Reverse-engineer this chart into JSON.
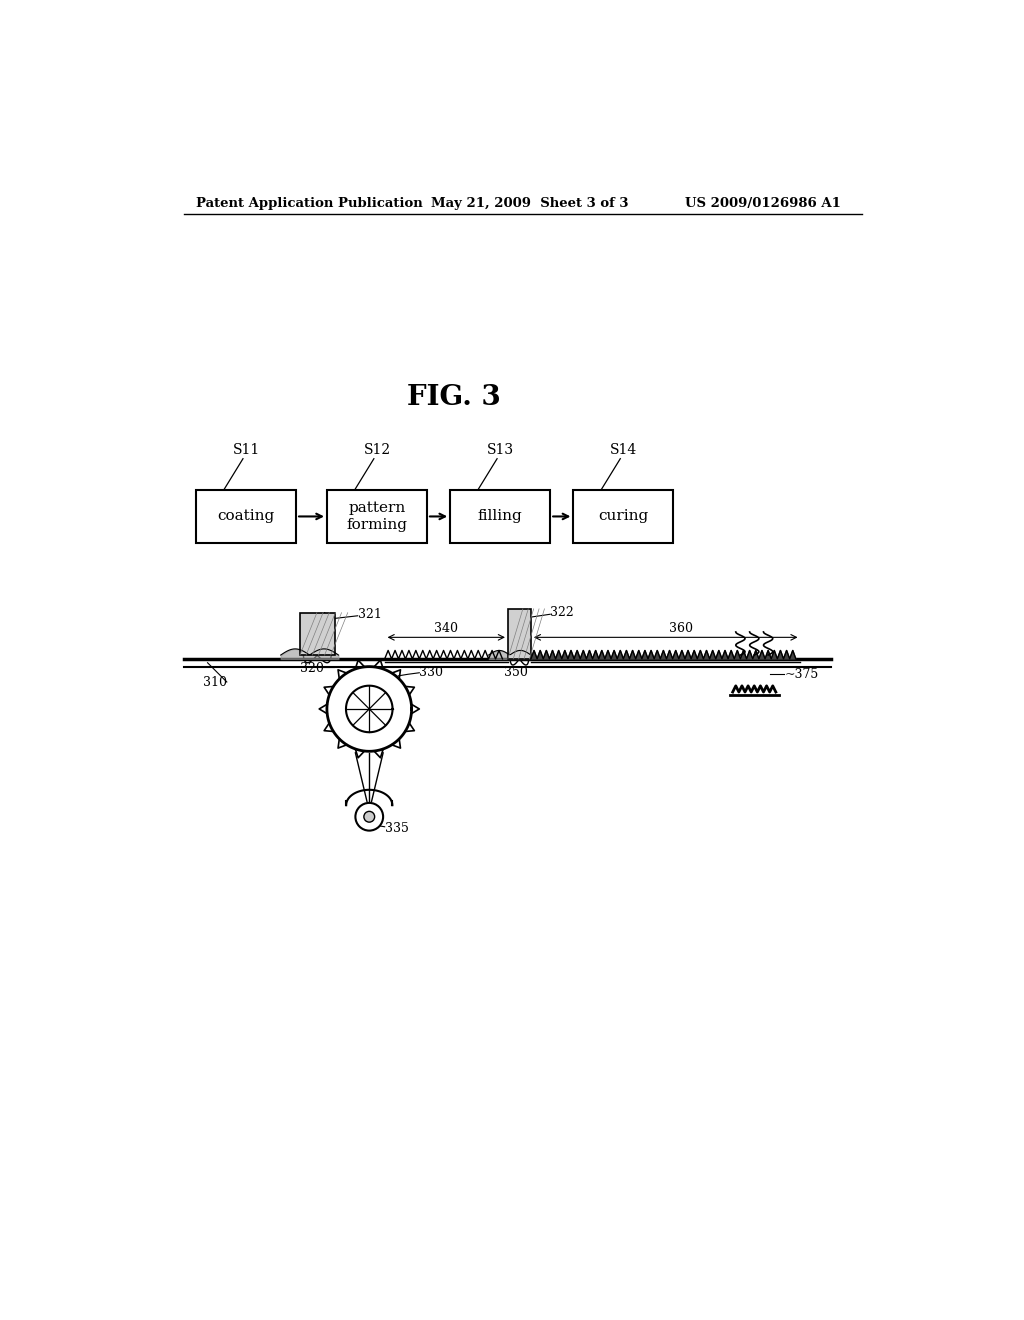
{
  "bg_color": "#ffffff",
  "header_left": "Patent Application Publication",
  "header_center": "May 21, 2009  Sheet 3 of 3",
  "header_right": "US 2009/0126986 A1",
  "fig_label": "FIG. 3",
  "flow_boxes": [
    "coating",
    "pattern\nforming",
    "filling",
    "curing"
  ],
  "flow_labels": [
    "S11",
    "S12",
    "S13",
    "S14"
  ],
  "line_color": "#000000",
  "text_color": "#000000"
}
